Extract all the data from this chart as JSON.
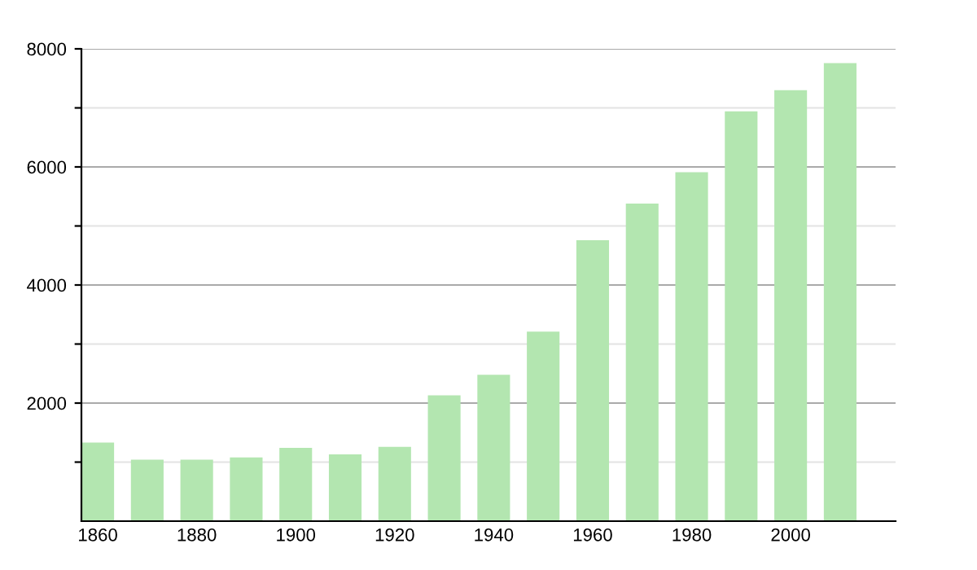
{
  "chart_data": {
    "type": "bar",
    "categories": [
      "1860",
      null,
      "1880",
      null,
      "1900",
      null,
      "1920",
      null,
      "1940",
      null,
      "1960",
      null,
      "1980",
      null,
      "2000",
      null
    ],
    "values": [
      1330,
      1040,
      1040,
      1080,
      1240,
      1130,
      1260,
      2130,
      2480,
      3210,
      4760,
      5380,
      5910,
      6940,
      7300,
      7760
    ],
    "color": "#b3e6b0",
    "ylim": [
      0,
      8000
    ],
    "yticks": [
      {
        "value": 1000,
        "label": null
      },
      2000,
      {
        "value": 3000,
        "label": null
      },
      4000,
      {
        "value": 5000,
        "label": null
      },
      6000,
      {
        "value": 7000,
        "label": null
      },
      8000
    ],
    "grid": "y"
  }
}
